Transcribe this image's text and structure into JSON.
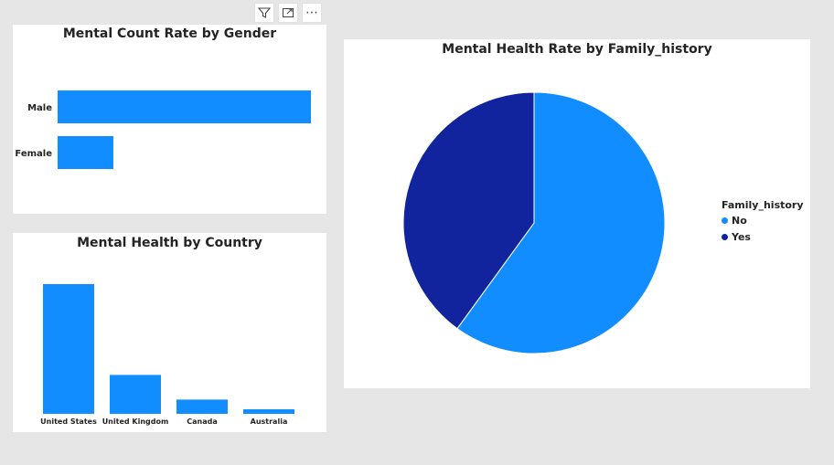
{
  "toolbar": {
    "icons": [
      "filter-icon",
      "focus-mode-icon",
      "more-options-icon"
    ],
    "more_label": "⋯"
  },
  "colors": {
    "bar": "#118dff",
    "no": "#118dff",
    "yes": "#12239e",
    "background": "#e6e6e6",
    "card": "#ffffff",
    "text": "#252423"
  },
  "chart_data": [
    {
      "type": "bar",
      "orientation": "horizontal",
      "title": "Mental Count Rate by Gender",
      "categories": [
        "Male",
        "Female"
      ],
      "values": [
        100,
        22
      ]
    },
    {
      "type": "bar",
      "orientation": "vertical",
      "title": "Mental Health by Country",
      "categories": [
        "United States",
        "United Kingdom",
        "Canada",
        "Australia"
      ],
      "values": [
        100,
        30,
        11,
        3.5
      ]
    },
    {
      "type": "pie",
      "title": "Mental Health Rate by Family_history",
      "legend_title": "Family_history",
      "legend_position": "right",
      "categories": [
        "No",
        "Yes"
      ],
      "values": [
        60,
        40
      ]
    }
  ]
}
